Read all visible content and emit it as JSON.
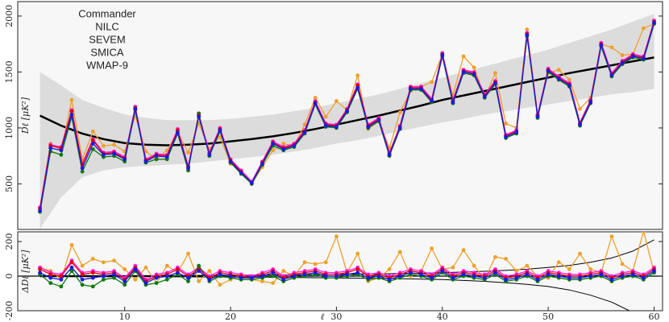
{
  "chart_data": [
    {
      "type": "line",
      "ylabel": "Dℓ [μK²]",
      "legend": "upper left",
      "xlim": [
        -0.1,
        60.8
      ],
      "ylim": [
        93,
        2129
      ],
      "yticks": [
        500,
        1000,
        1500,
        2000
      ],
      "x": [
        2,
        3,
        4,
        5,
        6,
        7,
        8,
        9,
        10,
        11,
        12,
        13,
        14,
        15,
        16,
        17,
        18,
        19,
        20,
        21,
        22,
        23,
        24,
        25,
        26,
        27,
        28,
        29,
        30,
        31,
        32,
        33,
        34,
        35,
        36,
        37,
        38,
        39,
        40,
        41,
        42,
        43,
        44,
        45,
        46,
        47,
        48,
        49,
        50,
        51,
        52,
        53,
        54,
        55,
        56,
        57,
        58,
        59,
        60
      ],
      "series": [
        {
          "name": "Commander",
          "color": "#1a1ae6",
          "values": [
            260,
            820,
            800,
            1120,
            640,
            860,
            760,
            770,
            720,
            1170,
            700,
            750,
            740,
            960,
            640,
            1100,
            760,
            980,
            700,
            600,
            510,
            680,
            860,
            810,
            840,
            960,
            1220,
            1020,
            1010,
            1150,
            1360,
            1010,
            1070,
            760,
            1000,
            1350,
            1350,
            1240,
            1650,
            1230,
            1500,
            1480,
            1280,
            1400,
            920,
            960,
            1830,
            1100,
            1510,
            1440,
            1380,
            1030,
            1230,
            1740,
            1470,
            1580,
            1640,
            1620,
            1940
          ]
        },
        {
          "name": "NILC",
          "color": "#e60000",
          "values": [
            280,
            840,
            820,
            1150,
            670,
            890,
            770,
            780,
            730,
            1180,
            710,
            760,
            750,
            980,
            650,
            1110,
            770,
            990,
            710,
            610,
            510,
            690,
            870,
            820,
            850,
            970,
            1230,
            1030,
            1020,
            1160,
            1380,
            1020,
            1080,
            770,
            1010,
            1360,
            1360,
            1250,
            1660,
            1240,
            1510,
            1490,
            1290,
            1410,
            930,
            970,
            1840,
            1110,
            1520,
            1450,
            1390,
            1040,
            1240,
            1750,
            1480,
            1590,
            1650,
            1630,
            1950
          ]
        },
        {
          "name": "SEVEM",
          "color": "#0b7a0b",
          "values": [
            250,
            790,
            760,
            1100,
            610,
            810,
            740,
            750,
            700,
            1160,
            690,
            720,
            720,
            950,
            620,
            1130,
            750,
            970,
            690,
            590,
            500,
            670,
            840,
            800,
            830,
            950,
            1210,
            1010,
            1000,
            1140,
            1350,
            1000,
            1060,
            750,
            990,
            1340,
            1340,
            1230,
            1640,
            1220,
            1490,
            1470,
            1270,
            1390,
            910,
            950,
            1820,
            1090,
            1500,
            1430,
            1370,
            1020,
            1220,
            1730,
            1460,
            1570,
            1630,
            1610,
            1930
          ]
        },
        {
          "name": "SMICA",
          "color": "#ff1aff",
          "values": [
            290,
            850,
            830,
            1160,
            680,
            900,
            780,
            790,
            740,
            1190,
            720,
            770,
            760,
            990,
            660,
            1120,
            780,
            1000,
            720,
            620,
            520,
            700,
            880,
            830,
            860,
            980,
            1240,
            1040,
            1030,
            1170,
            1390,
            1030,
            1090,
            780,
            1020,
            1370,
            1370,
            1260,
            1670,
            1250,
            1520,
            1500,
            1300,
            1420,
            940,
            980,
            1850,
            1120,
            1530,
            1460,
            1400,
            1050,
            1250,
            1760,
            1490,
            1600,
            1660,
            1640,
            1960
          ]
        },
        {
          "name": "WMAP-9",
          "color": "#f0a028",
          "values": [
            290,
            860,
            800,
            1250,
            720,
            970,
            840,
            850,
            790,
            1110,
            790,
            720,
            800,
            960,
            780,
            1040,
            810,
            920,
            680,
            620,
            500,
            650,
            800,
            860,
            840,
            1030,
            1270,
            1100,
            1240,
            1160,
            1470,
            990,
            1060,
            820,
            1140,
            1330,
            1370,
            1410,
            1660,
            1290,
            1640,
            1540,
            1270,
            1490,
            1040,
            1000,
            1880,
            1120,
            1490,
            1520,
            1430,
            1170,
            1270,
            1750,
            1720,
            1650,
            1660,
            1890,
            1930
          ]
        }
      ],
      "model": {
        "x": [
          2,
          4,
          6,
          8,
          10,
          12,
          14,
          16,
          18,
          20,
          22,
          24,
          26,
          28,
          30,
          32,
          34,
          36,
          38,
          40,
          42,
          44,
          46,
          48,
          50,
          52,
          54,
          56,
          58,
          60
        ],
        "values": [
          1110,
          1020,
          950,
          900,
          865,
          850,
          845,
          850,
          860,
          880,
          900,
          925,
          955,
          990,
          1030,
          1070,
          1110,
          1155,
          1200,
          1250,
          1290,
          1330,
          1370,
          1410,
          1450,
          1490,
          1525,
          1560,
          1595,
          1630
        ],
        "band_high": [
          1500,
          1380,
          1250,
          1180,
          1120,
          1090,
          1070,
          1070,
          1070,
          1080,
          1100,
          1120,
          1150,
          1180,
          1220,
          1260,
          1300,
          1350,
          1400,
          1450,
          1500,
          1550,
          1600,
          1650,
          1700,
          1760,
          1820,
          1880,
          1950,
          2020
        ],
        "band_low": [
          100,
          380,
          560,
          620,
          650,
          660,
          670,
          680,
          700,
          720,
          740,
          760,
          790,
          820,
          860,
          890,
          930,
          970,
          1010,
          1050,
          1080,
          1120,
          1150,
          1180,
          1210,
          1240,
          1270,
          1300,
          1320,
          1350
        ]
      }
    },
    {
      "type": "line",
      "ylabel": "ΔDℓ [μK²]",
      "xlabel": "ℓ",
      "xlim": [
        -0.1,
        60.8
      ],
      "ylim": [
        -200,
        256
      ],
      "yticks": [
        -200,
        0,
        200
      ],
      "xticks": [
        10,
        20,
        30,
        40,
        50,
        60
      ],
      "x": [
        2,
        3,
        4,
        5,
        6,
        7,
        8,
        9,
        10,
        11,
        12,
        13,
        14,
        15,
        16,
        17,
        18,
        19,
        20,
        21,
        22,
        23,
        24,
        25,
        26,
        27,
        28,
        29,
        30,
        31,
        32,
        33,
        34,
        35,
        36,
        37,
        38,
        39,
        40,
        41,
        42,
        43,
        44,
        45,
        46,
        47,
        48,
        49,
        50,
        51,
        52,
        53,
        54,
        55,
        56,
        57,
        58,
        59,
        60
      ],
      "series": [
        {
          "name": "Commander",
          "color": "#1a1ae6",
          "values": [
            20,
            -10,
            -20,
            50,
            -20,
            -10,
            0,
            10,
            -30,
            40,
            -40,
            -10,
            0,
            20,
            -10,
            30,
            -20,
            10,
            0,
            -10,
            -10,
            0,
            20,
            -20,
            0,
            10,
            20,
            0,
            0,
            10,
            20,
            -10,
            0,
            -20,
            0,
            20,
            10,
            -10,
            30,
            -10,
            10,
            0,
            -10,
            20,
            -20,
            -10,
            10,
            -20,
            10,
            0,
            -10,
            -10,
            0,
            10,
            -20,
            0,
            10,
            -10,
            30
          ]
        },
        {
          "name": "NILC",
          "color": "#e60000",
          "values": [
            40,
            10,
            0,
            80,
            10,
            20,
            10,
            20,
            -20,
            50,
            -30,
            0,
            10,
            40,
            0,
            40,
            -10,
            20,
            10,
            0,
            -10,
            10,
            30,
            -10,
            10,
            20,
            30,
            10,
            10,
            20,
            40,
            0,
            10,
            -10,
            10,
            30,
            20,
            0,
            40,
            0,
            20,
            10,
            0,
            30,
            -10,
            0,
            20,
            -10,
            20,
            10,
            0,
            0,
            10,
            20,
            -10,
            10,
            20,
            0,
            40
          ]
        },
        {
          "name": "SEVEM",
          "color": "#0b7a0b",
          "values": [
            10,
            -40,
            -60,
            30,
            -50,
            -60,
            -20,
            -10,
            -50,
            30,
            -50,
            -40,
            -20,
            10,
            -30,
            60,
            -30,
            0,
            -10,
            -20,
            -20,
            -10,
            0,
            -30,
            -10,
            0,
            10,
            -10,
            -10,
            0,
            10,
            -20,
            -10,
            -30,
            -10,
            10,
            0,
            -20,
            20,
            -20,
            0,
            -10,
            -20,
            10,
            -30,
            -20,
            0,
            -30,
            0,
            -10,
            -20,
            -20,
            -10,
            0,
            -30,
            -10,
            0,
            -20,
            20
          ]
        },
        {
          "name": "SMICA",
          "color": "#ff1aff",
          "values": [
            50,
            20,
            10,
            90,
            20,
            30,
            20,
            30,
            -10,
            60,
            -20,
            10,
            20,
            50,
            10,
            50,
            0,
            30,
            20,
            10,
            0,
            20,
            40,
            0,
            20,
            30,
            40,
            20,
            20,
            30,
            50,
            10,
            20,
            0,
            20,
            40,
            30,
            10,
            50,
            10,
            30,
            20,
            10,
            40,
            0,
            10,
            30,
            0,
            30,
            20,
            10,
            10,
            20,
            30,
            0,
            20,
            30,
            10,
            50
          ]
        },
        {
          "name": "WMAP-9",
          "color": "#f0a028",
          "values": [
            50,
            30,
            -20,
            180,
            60,
            100,
            80,
            90,
            40,
            -20,
            50,
            -40,
            60,
            20,
            130,
            -30,
            30,
            -50,
            -20,
            10,
            -20,
            -30,
            -40,
            30,
            0,
            80,
            70,
            80,
            230,
            20,
            130,
            -30,
            -10,
            40,
            140,
            0,
            30,
            160,
            40,
            50,
            150,
            60,
            -20,
            110,
            100,
            30,
            60,
            0,
            -10,
            80,
            40,
            130,
            40,
            20,
            230,
            70,
            30,
            260,
            20
          ]
        }
      ],
      "envelope": {
        "x": [
          2,
          4,
          6,
          8,
          10,
          12,
          14,
          16,
          18,
          20,
          22,
          24,
          26,
          28,
          30,
          32,
          34,
          36,
          38,
          40,
          42,
          44,
          46,
          48,
          50,
          52,
          54,
          56,
          58,
          60
        ],
        "upper": [
          3,
          3,
          3,
          3,
          3,
          3,
          4,
          4,
          5,
          5,
          6,
          7,
          8,
          9,
          10,
          12,
          13,
          15,
          17,
          20,
          24,
          28,
          33,
          40,
          50,
          62,
          80,
          105,
          145,
          210
        ],
        "lower": [
          -3,
          -3,
          -3,
          -3,
          -3,
          -3,
          -4,
          -4,
          -5,
          -5,
          -6,
          -7,
          -8,
          -9,
          -10,
          -12,
          -13,
          -15,
          -17,
          -20,
          -25,
          -30,
          -38,
          -48,
          -60,
          -80,
          -110,
          -150,
          -210,
          -300
        ]
      }
    }
  ]
}
